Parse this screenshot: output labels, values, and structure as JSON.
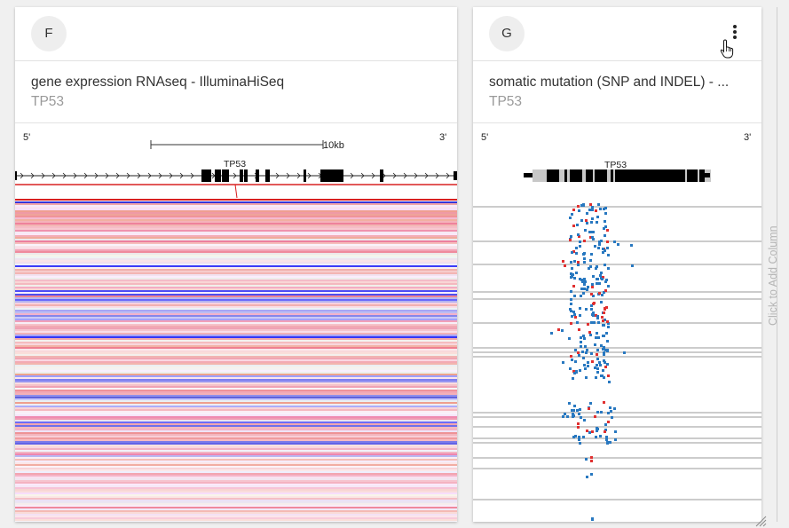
{
  "columns": [
    {
      "letter": "F",
      "title": "gene expression RNAseq - IlluminaHiSeq",
      "subtitle": "TP53",
      "track": {
        "left_end": "5'",
        "right_end": "3'",
        "scale_label": "10kb",
        "gene_label": "TP53"
      }
    },
    {
      "letter": "G",
      "title": "somatic mutation (SNP and INDEL) - ...",
      "subtitle": "TP53",
      "track": {
        "left_end": "5'",
        "right_end": "3'",
        "gene_label": "TP53"
      }
    }
  ],
  "add_column_label": "Click to Add Column",
  "colors": {
    "high": "#d82020",
    "low": "#1010e0",
    "missense": "#2878c0",
    "truncating": "#e03030"
  }
}
